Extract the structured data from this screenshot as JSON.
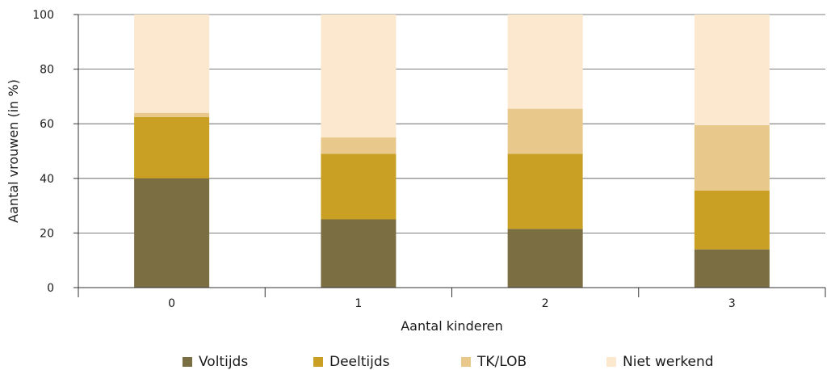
{
  "chart_data": {
    "type": "bar",
    "stacked": true,
    "categories": [
      "0",
      "1",
      "2",
      "3"
    ],
    "series": [
      {
        "name": "Voltijds",
        "color": "#7a6e42",
        "values": [
          40,
          25,
          21.5,
          14
        ]
      },
      {
        "name": "Deeltijds",
        "color": "#c9a024",
        "values": [
          22.5,
          24,
          27.5,
          21.5
        ]
      },
      {
        "name": "TK/LOB",
        "color": "#e9c88b",
        "values": [
          1.5,
          6,
          16.5,
          24
        ]
      },
      {
        "name": "Niet werkend",
        "color": "#fbe8cf",
        "values": [
          36,
          45,
          34.5,
          40.5
        ]
      }
    ],
    "xlabel": "Aantal kinderen",
    "ylabel": "Aantal vrouwen (in %)",
    "ylim": [
      0,
      100
    ],
    "yticks": [
      0,
      20,
      40,
      60,
      80,
      100
    ],
    "grid": true,
    "legend_position": "bottom"
  }
}
